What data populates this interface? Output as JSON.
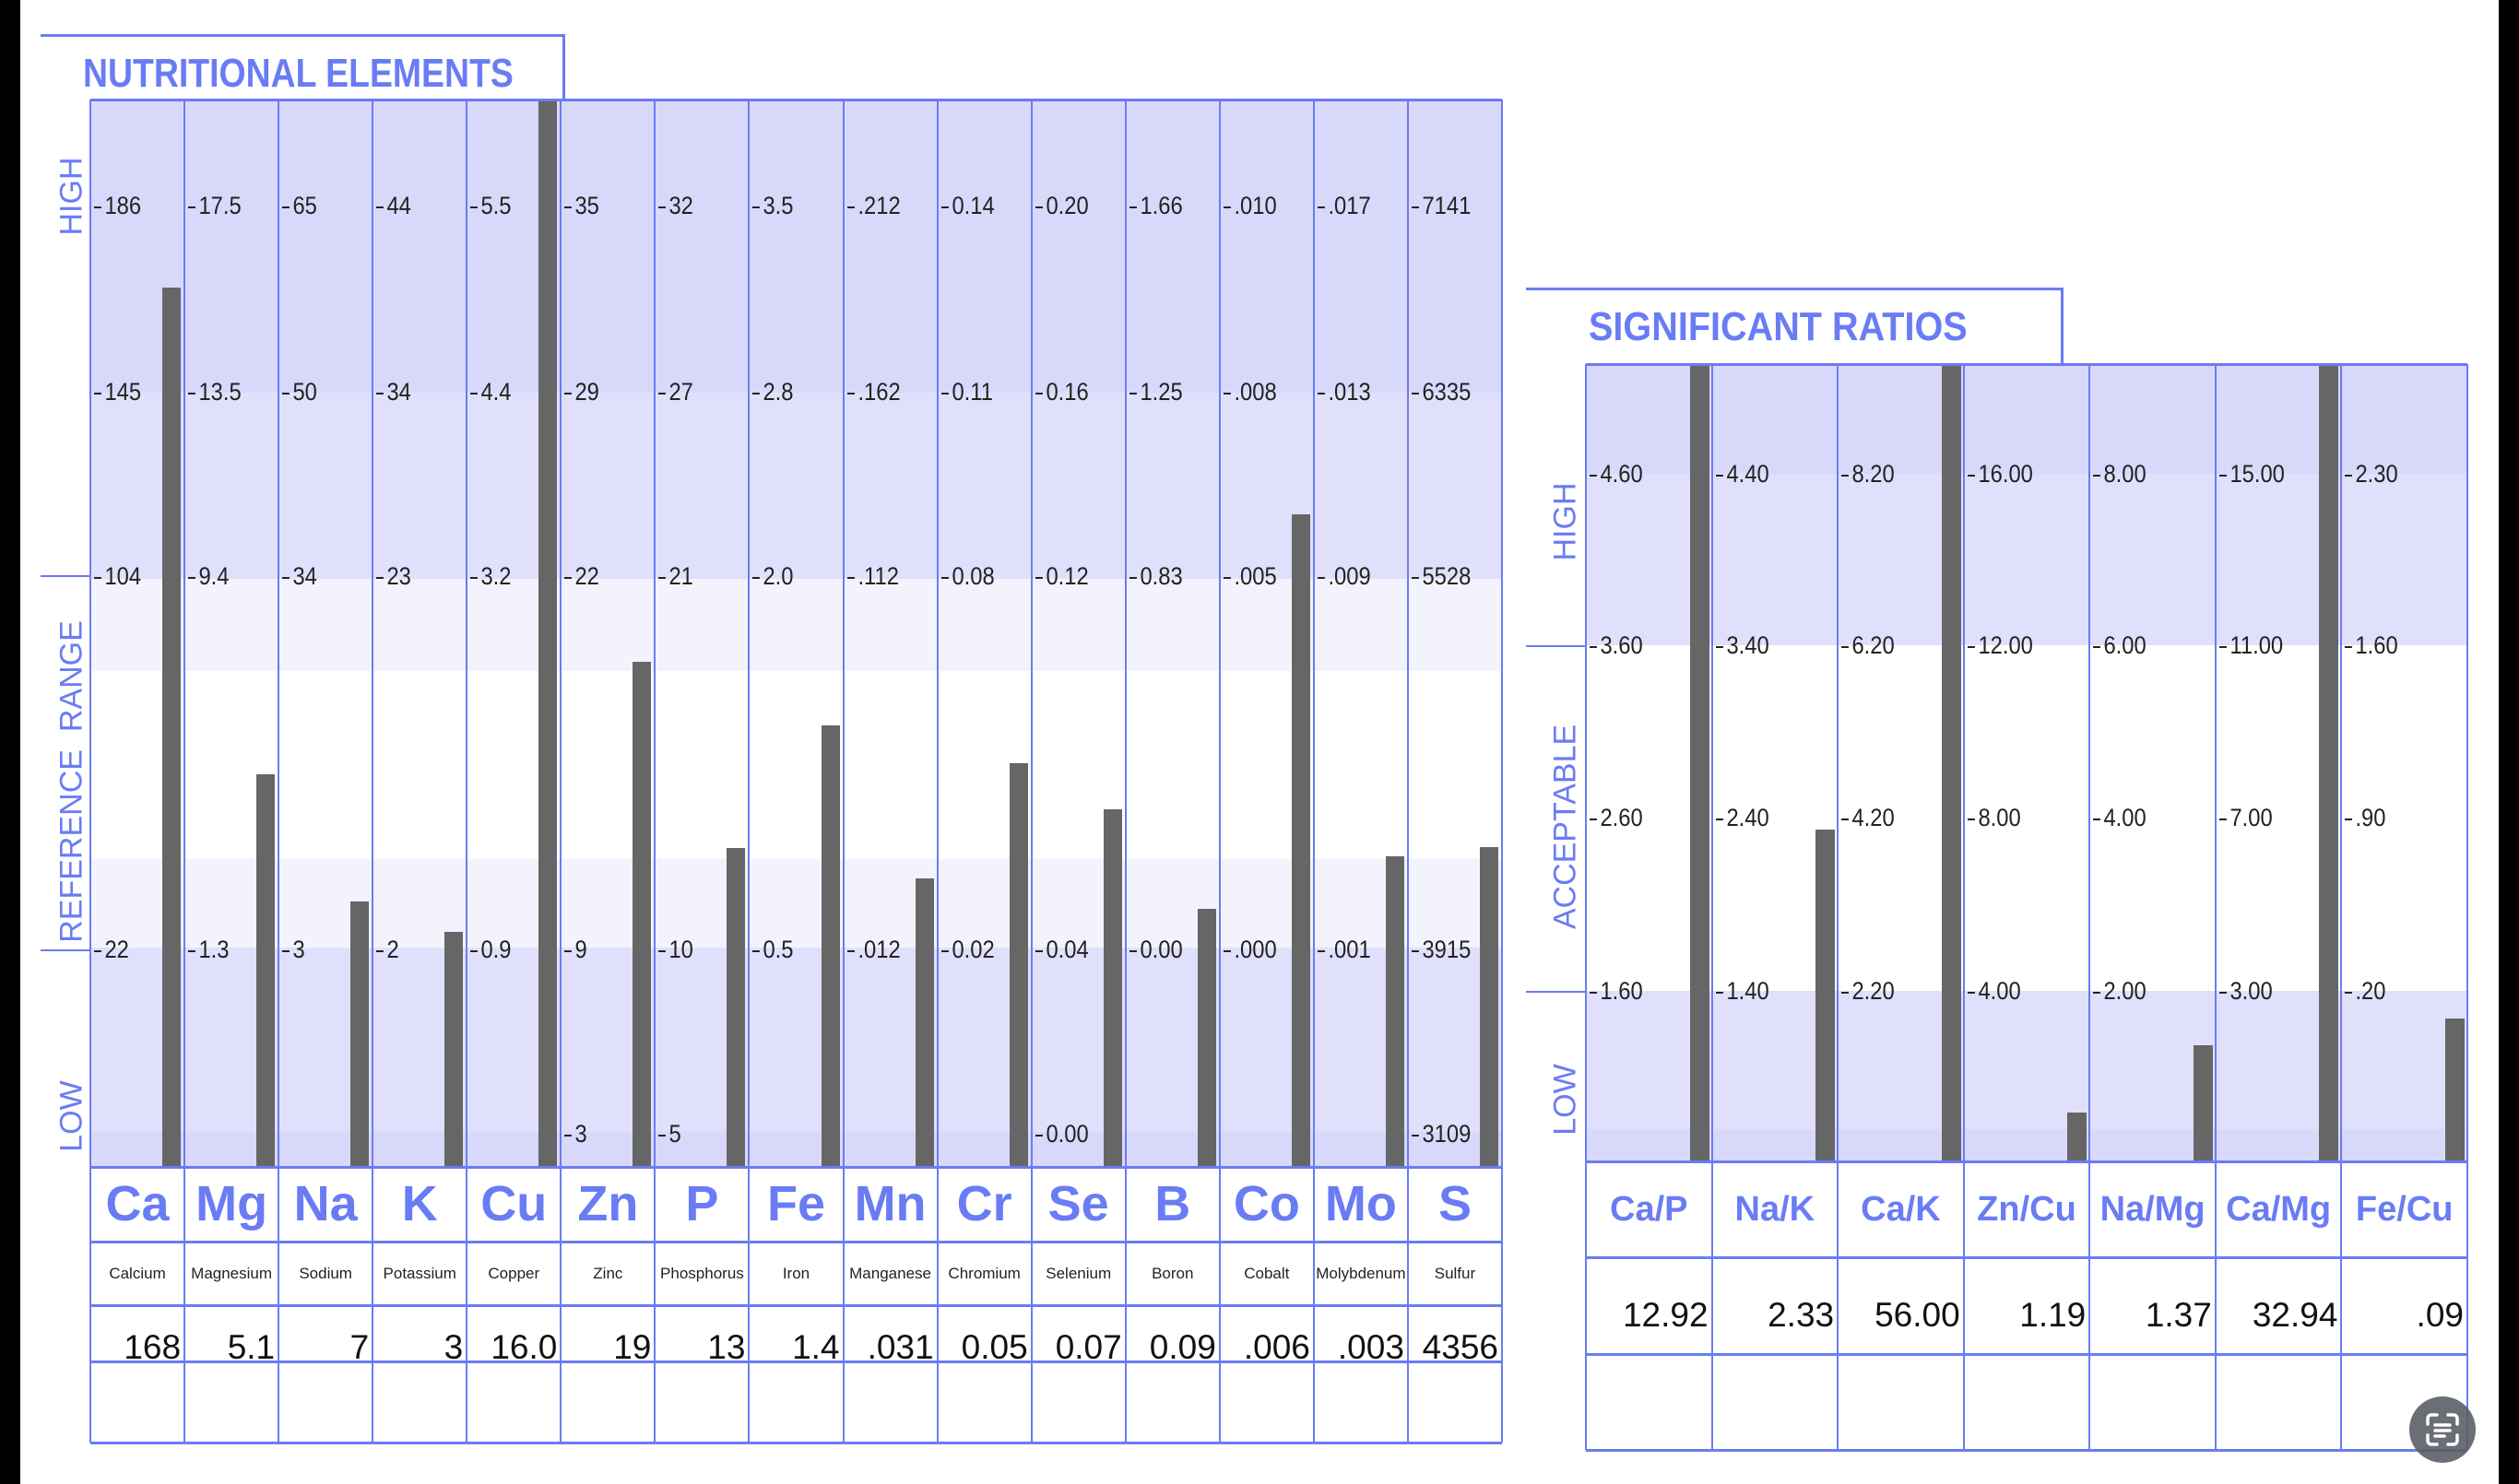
{
  "colors": {
    "accent": "#6a7cf4",
    "bar": "#666666",
    "band_dark": "#d8d8fb",
    "band_mid": "#e0e0fc",
    "band_light": "#f3f3fd"
  },
  "chart_data": [
    {
      "type": "bar",
      "title": "NUTRITIONAL ELEMENTS",
      "zones": [
        "HIGH",
        "REFERENCE  RANGE",
        "LOW"
      ],
      "columns": [
        {
          "symbol": "Ca",
          "name": "Calcium",
          "value": "168",
          "ticks": [
            "186",
            "145",
            "104",
            "22",
            null
          ]
        },
        {
          "symbol": "Mg",
          "name": "Magnesium",
          "value": "5.1",
          "ticks": [
            "17.5",
            "13.5",
            "9.4",
            "1.3",
            null
          ]
        },
        {
          "symbol": "Na",
          "name": "Sodium",
          "value": "7",
          "ticks": [
            "65",
            "50",
            "34",
            "3",
            null
          ]
        },
        {
          "symbol": "K",
          "name": "Potassium",
          "value": "3",
          "ticks": [
            "44",
            "34",
            "23",
            "2",
            null
          ]
        },
        {
          "symbol": "Cu",
          "name": "Copper",
          "value": "16.0",
          "ticks": [
            "5.5",
            "4.4",
            "3.2",
            "0.9",
            null
          ]
        },
        {
          "symbol": "Zn",
          "name": "Zinc",
          "value": "19",
          "ticks": [
            "35",
            "29",
            "22",
            "9",
            "3"
          ]
        },
        {
          "symbol": "P",
          "name": "Phosphorus",
          "value": "13",
          "ticks": [
            "32",
            "27",
            "21",
            "10",
            "5"
          ]
        },
        {
          "symbol": "Fe",
          "name": "Iron",
          "value": "1.4",
          "ticks": [
            "3.5",
            "2.8",
            "2.0",
            "0.5",
            null
          ]
        },
        {
          "symbol": "Mn",
          "name": "Manganese",
          "value": ".031",
          "ticks": [
            ".212",
            ".162",
            ".112",
            ".012",
            null
          ]
        },
        {
          "symbol": "Cr",
          "name": "Chromium",
          "value": "0.05",
          "ticks": [
            "0.14",
            "0.11",
            "0.08",
            "0.02",
            null
          ]
        },
        {
          "symbol": "Se",
          "name": "Selenium",
          "value": "0.07",
          "ticks": [
            "0.20",
            "0.16",
            "0.12",
            "0.04",
            "0.00"
          ]
        },
        {
          "symbol": "B",
          "name": "Boron",
          "value": "0.09",
          "ticks": [
            "1.66",
            "1.25",
            "0.83",
            "0.00",
            null
          ]
        },
        {
          "symbol": "Co",
          "name": "Cobalt",
          "value": ".006",
          "ticks": [
            ".010",
            ".008",
            ".005",
            ".000",
            null
          ]
        },
        {
          "symbol": "Mo",
          "name": "Molybdenum",
          "value": ".003",
          "ticks": [
            ".017",
            ".013",
            ".009",
            ".001",
            null
          ]
        },
        {
          "symbol": "S",
          "name": "Sulfur",
          "value": "4356",
          "ticks": [
            "7141",
            "6335",
            "5528",
            "3915",
            "3109"
          ]
        }
      ]
    },
    {
      "type": "bar",
      "title": "SIGNIFICANT RATIOS",
      "zones": [
        "HIGH",
        "ACCEPTABLE",
        "LOW"
      ],
      "columns": [
        {
          "symbol": "Ca/P",
          "value": "12.92",
          "ticks": [
            "4.60",
            "3.60",
            "2.60",
            "1.60"
          ]
        },
        {
          "symbol": "Na/K",
          "value": "2.33",
          "ticks": [
            "4.40",
            "3.40",
            "2.40",
            "1.40"
          ]
        },
        {
          "symbol": "Ca/K",
          "value": "56.00",
          "ticks": [
            "8.20",
            "6.20",
            "4.20",
            "2.20"
          ]
        },
        {
          "symbol": "Zn/Cu",
          "value": "1.19",
          "ticks": [
            "16.00",
            "12.00",
            "8.00",
            "4.00"
          ]
        },
        {
          "symbol": "Na/Mg",
          "value": "1.37",
          "ticks": [
            "8.00",
            "6.00",
            "4.00",
            "2.00"
          ]
        },
        {
          "symbol": "Ca/Mg",
          "value": "32.94",
          "ticks": [
            "15.00",
            "11.00",
            "7.00",
            "3.00"
          ]
        },
        {
          "symbol": "Fe/Cu",
          "value": ".09",
          "ticks": [
            "2.30",
            "1.60",
            ".90",
            ".20"
          ]
        }
      ]
    }
  ]
}
